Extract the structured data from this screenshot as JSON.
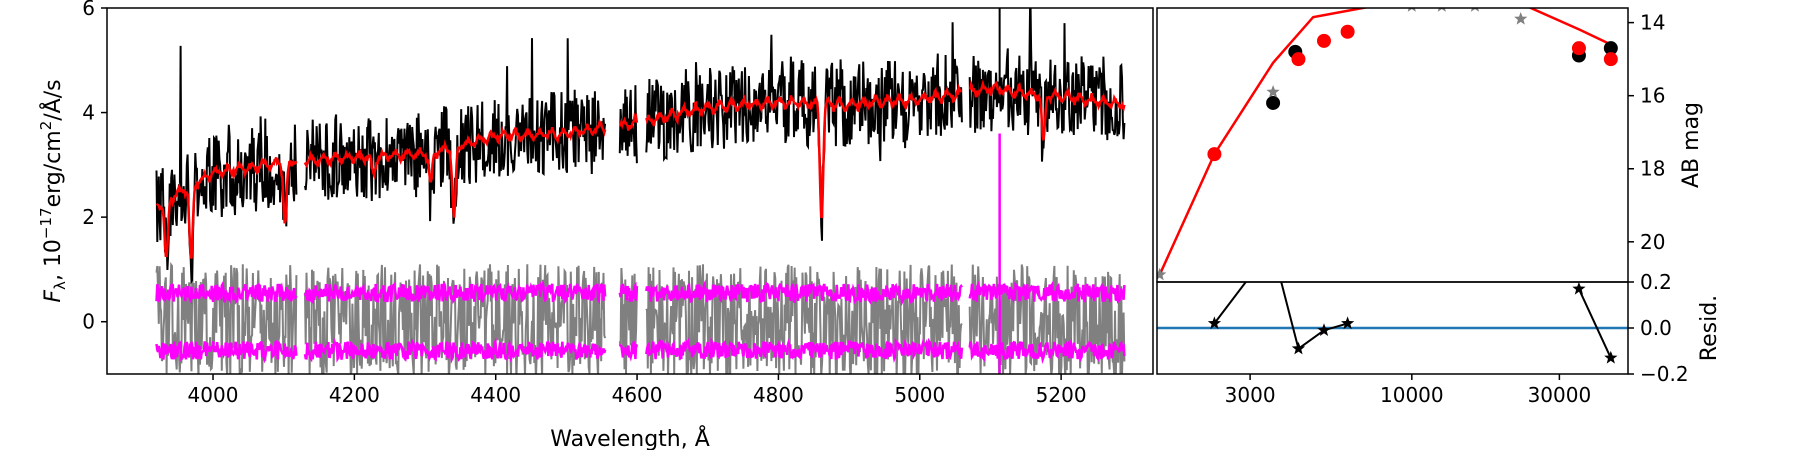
{
  "chart_data": [
    {
      "type": "line",
      "title": "",
      "xlabel": "Wavelength, Å",
      "ylabel_parts": {
        "main": "F",
        "sub": "λ",
        "mid": ", 10",
        "sup": "−17",
        "unit": "erg/cm",
        "unit_sup": "2",
        "tail": "/Å/s"
      },
      "xlim": [
        3850,
        5330
      ],
      "ylim": [
        -1,
        6
      ],
      "xticks": [
        4000,
        4200,
        4400,
        4600,
        4800,
        5000,
        5200
      ],
      "yticks": [
        0,
        2,
        4,
        6
      ],
      "gaps": [
        [
          4118,
          4130
        ],
        [
          4555,
          4575
        ],
        [
          4600,
          4612
        ],
        [
          5060,
          5070
        ]
      ],
      "series": [
        {
          "id": "observed",
          "color": "#000000",
          "description_values": {
            "start": 3920,
            "end": 5290
          }
        },
        {
          "id": "model",
          "color": "#ff0000"
        },
        {
          "id": "noise_band",
          "color": "#808080"
        },
        {
          "id": "error_upper",
          "color": "#ff00ff",
          "level": 0.55
        },
        {
          "id": "error_lower",
          "color": "#ff00ff",
          "level": -0.55
        }
      ],
      "continuum_anchors": [
        [
          3920,
          2.2
        ],
        [
          3950,
          2.45
        ],
        [
          4000,
          2.85
        ],
        [
          4100,
          3.05
        ],
        [
          4200,
          3.15
        ],
        [
          4300,
          3.2
        ],
        [
          4400,
          3.55
        ],
        [
          4500,
          3.6
        ],
        [
          4600,
          3.8
        ],
        [
          4700,
          4.1
        ],
        [
          4800,
          4.2
        ],
        [
          4900,
          4.15
        ],
        [
          5000,
          4.25
        ],
        [
          5100,
          4.45
        ],
        [
          5200,
          4.3
        ],
        [
          5290,
          4.15
        ]
      ],
      "absorption_lines": [
        {
          "x": 3934,
          "depth": 1.2
        },
        {
          "x": 3969,
          "depth": 1.5
        },
        {
          "x": 4102,
          "depth": 1.2
        },
        {
          "x": 4227,
          "depth": 0.4
        },
        {
          "x": 4308,
          "depth": 0.6
        },
        {
          "x": 4341,
          "depth": 1.4
        },
        {
          "x": 4861,
          "depth": 2.2
        },
        {
          "x": 5175,
          "depth": 0.9
        }
      ],
      "spike_x": 5113
    },
    {
      "type": "line",
      "title": "",
      "xscale": "log",
      "xlim": [
        1500,
        50000
      ],
      "xticks": [
        3000,
        10000,
        30000
      ],
      "xtick_labels": [
        "3000",
        "10000",
        "30000"
      ],
      "ylabel_right": "AB mag",
      "ylim_inverted": [
        21.1,
        13.6
      ],
      "yticks": [
        14,
        16,
        18,
        20
      ],
      "model_points": [
        [
          1530,
          20.9
        ],
        [
          2300,
          17.6
        ],
        [
          3560,
          15.1
        ],
        [
          4800,
          13.85
        ],
        [
          12500,
          13.2
        ],
        [
          19000,
          13.2
        ],
        [
          35000,
          14.2
        ],
        [
          44000,
          14.6
        ]
      ],
      "observed_points": [
        [
          3560,
          16.2
        ],
        [
          4200,
          14.8
        ],
        [
          34700,
          14.9
        ],
        [
          44000,
          14.7
        ]
      ],
      "model_markers": [
        [
          2300,
          17.6
        ],
        [
          4300,
          15.0
        ],
        [
          5200,
          14.5
        ],
        [
          6200,
          14.25
        ],
        [
          34700,
          14.7
        ],
        [
          44000,
          15.0
        ]
      ],
      "model_stars": [
        [
          1530,
          20.9
        ],
        [
          3560,
          15.9
        ],
        [
          10000,
          13.55
        ],
        [
          12500,
          13.55
        ],
        [
          16000,
          13.55
        ],
        [
          22500,
          13.9
        ]
      ],
      "colors": {
        "model": "#ff0000",
        "observed": "#000000",
        "stars": "#808080"
      }
    },
    {
      "type": "line",
      "title": "",
      "xscale": "log",
      "xlim": [
        1500,
        50000
      ],
      "ylabel_right": "Resid.",
      "ylim": [
        -0.2,
        0.2
      ],
      "yticks": [
        0.2,
        0.0,
        -0.2
      ],
      "ytick_labels": [
        "0.2",
        "0.0",
        "−0.2"
      ],
      "zero_line_color": "#1f77b4",
      "residual_points": [
        [
          2300,
          0.02
        ],
        [
          4300,
          -0.09
        ],
        [
          5200,
          -0.01
        ],
        [
          6200,
          0.02
        ],
        [
          34700,
          0.17
        ],
        [
          44000,
          -0.13
        ]
      ],
      "residual_offscreen_segments": [
        [
          [
            2300,
            0.02
          ],
          [
            3100,
            0.25
          ]
        ],
        [
          [
            3700,
            0.25
          ],
          [
            4300,
            -0.09
          ]
        ]
      ]
    }
  ]
}
